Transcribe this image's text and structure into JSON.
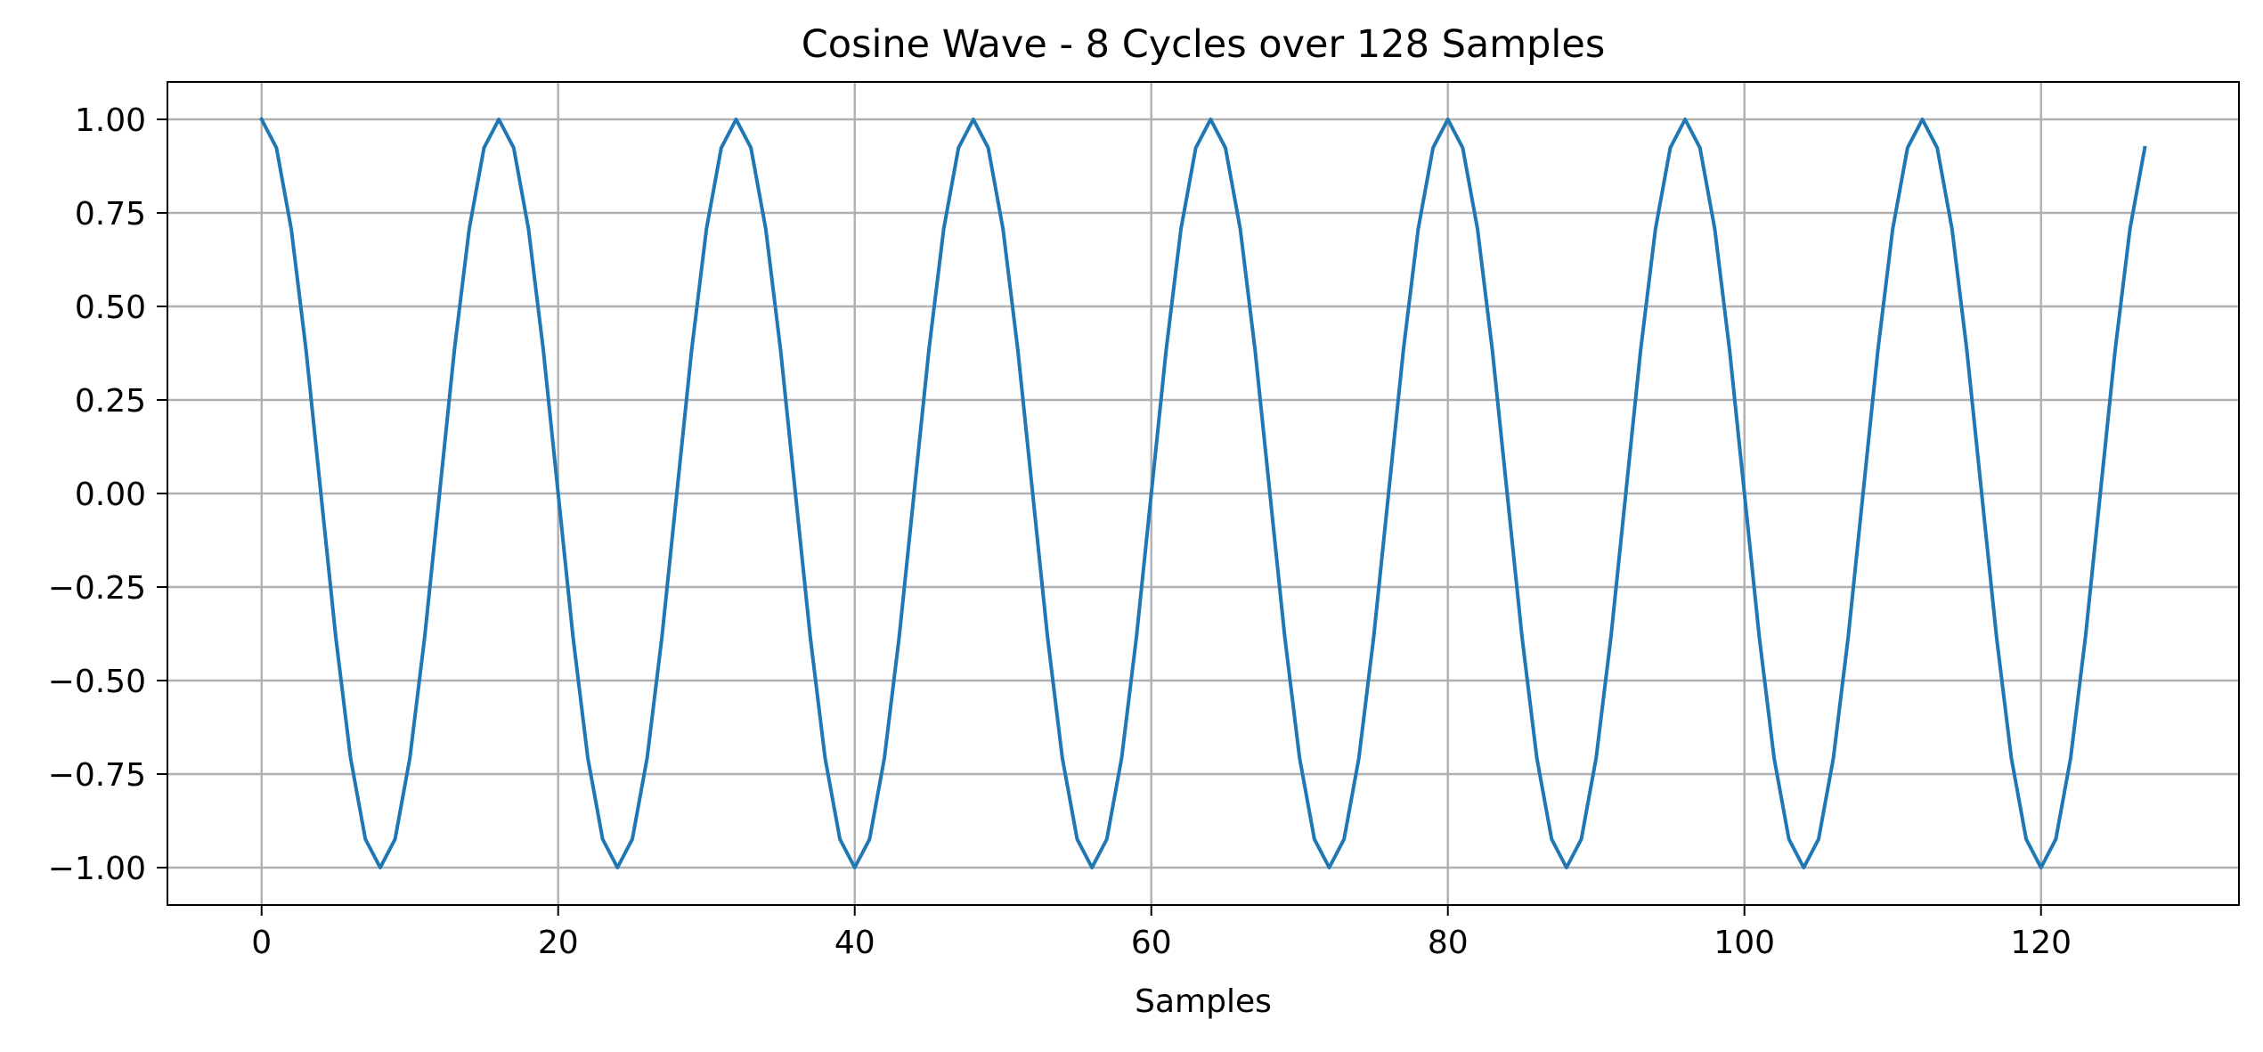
{
  "chart_data": {
    "type": "line",
    "title": "Cosine Wave - 8 Cycles over 128 Samples",
    "xlabel": "Samples",
    "ylabel": "",
    "xlim": [
      -6.35,
      133.35
    ],
    "ylim": [
      -1.1,
      1.1
    ],
    "xticks": [
      0,
      20,
      40,
      60,
      80,
      100,
      120
    ],
    "xtick_labels": [
      "0",
      "20",
      "40",
      "60",
      "80",
      "100",
      "120"
    ],
    "yticks": [
      1.0,
      0.75,
      0.5,
      0.25,
      0.0,
      -0.25,
      -0.5,
      -0.75,
      -1.0
    ],
    "ytick_labels": [
      "1.00",
      "0.75",
      "0.50",
      "0.25",
      "0.00",
      "−0.25",
      "−0.50",
      "−0.75",
      "−1.00"
    ],
    "grid": true,
    "legend": "none",
    "series": [
      {
        "color": "#1f77b4",
        "x_start": 0,
        "x_step": 1,
        "values": [
          1.0,
          0.924,
          0.707,
          0.383,
          0.0,
          -0.383,
          -0.707,
          -0.924,
          -1.0,
          -0.924,
          -0.707,
          -0.383,
          0.0,
          0.383,
          0.707,
          0.924,
          1.0,
          0.924,
          0.707,
          0.383,
          0.0,
          -0.383,
          -0.707,
          -0.924,
          -1.0,
          -0.924,
          -0.707,
          -0.383,
          0.0,
          0.383,
          0.707,
          0.924,
          1.0,
          0.924,
          0.707,
          0.383,
          0.0,
          -0.383,
          -0.707,
          -0.924,
          -1.0,
          -0.924,
          -0.707,
          -0.383,
          0.0,
          0.383,
          0.707,
          0.924,
          1.0,
          0.924,
          0.707,
          0.383,
          0.0,
          -0.383,
          -0.707,
          -0.924,
          -1.0,
          -0.924,
          -0.707,
          -0.383,
          0.0,
          0.383,
          0.707,
          0.924,
          1.0,
          0.924,
          0.707,
          0.383,
          0.0,
          -0.383,
          -0.707,
          -0.924,
          -1.0,
          -0.924,
          -0.707,
          -0.383,
          0.0,
          0.383,
          0.707,
          0.924,
          1.0,
          0.924,
          0.707,
          0.383,
          0.0,
          -0.383,
          -0.707,
          -0.924,
          -1.0,
          -0.924,
          -0.707,
          -0.383,
          0.0,
          0.383,
          0.707,
          0.924,
          1.0,
          0.924,
          0.707,
          0.383,
          0.0,
          -0.383,
          -0.707,
          -0.924,
          -1.0,
          -0.924,
          -0.707,
          -0.383,
          0.0,
          0.383,
          0.707,
          0.924,
          1.0,
          0.924,
          0.707,
          0.383,
          0.0,
          -0.383,
          -0.707,
          -0.924,
          -1.0,
          -0.924,
          -0.707,
          -0.383,
          0.0,
          0.383,
          0.707,
          0.924
        ]
      }
    ]
  },
  "colors": {
    "line": "#1f77b4",
    "grid": "#b0b0b0",
    "axes": "#000000",
    "background": "#ffffff"
  }
}
